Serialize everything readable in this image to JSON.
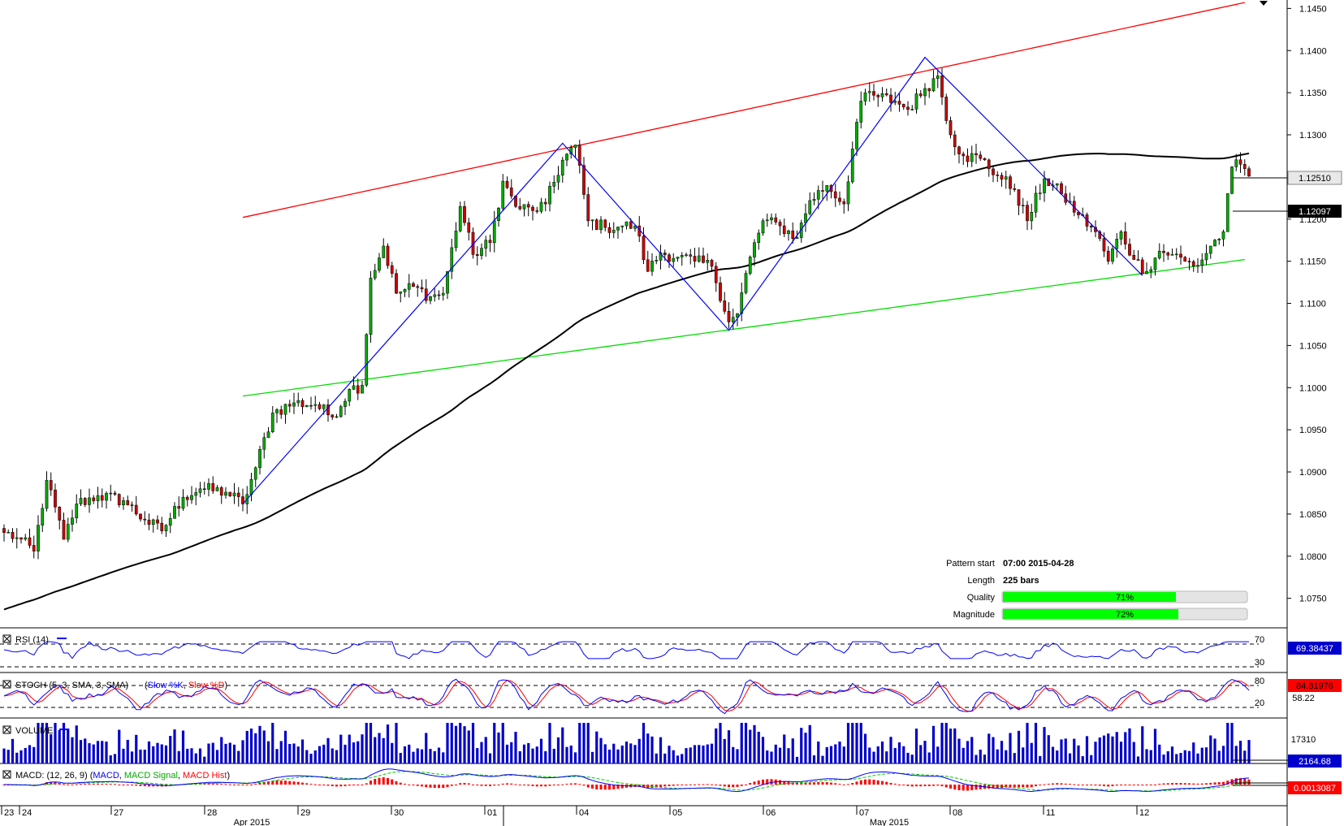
{
  "chart_data": {
    "type": "candlestick",
    "price_axis": {
      "ylim": [
        1.0715,
        1.146
      ],
      "ticks": [
        "1.1450",
        "1.1400",
        "1.1350",
        "1.1300",
        "1.1250",
        "1.1200",
        "1.1150",
        "1.1100",
        "1.1050",
        "1.1000",
        "1.0950",
        "1.0900",
        "1.0850",
        "1.0800",
        "1.0750"
      ]
    },
    "x_axis": {
      "day_labels": [
        "23",
        "24",
        "27",
        "28",
        "29",
        "30",
        "01",
        "04",
        "05",
        "06",
        "07",
        "08",
        "11",
        "12"
      ],
      "month_labels": [
        "Apr 2015",
        "May 2015"
      ]
    },
    "last_price_tag": "1.12510",
    "sma_tag": "1.12097",
    "anchors": [
      [
        0,
        1.0828
      ],
      [
        3,
        1.0822
      ],
      [
        7,
        1.0806
      ],
      [
        10,
        1.089
      ],
      [
        14,
        1.082
      ],
      [
        17,
        1.0862
      ],
      [
        22,
        1.0872
      ],
      [
        28,
        1.0866
      ],
      [
        33,
        1.0843
      ],
      [
        37,
        1.083
      ],
      [
        42,
        1.087
      ],
      [
        46,
        1.088
      ],
      [
        52,
        1.0876
      ],
      [
        56,
        1.0862
      ],
      [
        59,
        1.0905
      ],
      [
        63,
        1.097
      ],
      [
        68,
        1.0982
      ],
      [
        73,
        1.098
      ],
      [
        77,
        1.0965
      ],
      [
        81,
        1.0998
      ],
      [
        84,
        1.1003
      ],
      [
        86,
        1.113
      ],
      [
        89,
        1.1168
      ],
      [
        92,
        1.1112
      ],
      [
        96,
        1.112
      ],
      [
        100,
        1.1108
      ],
      [
        103,
        1.1112
      ],
      [
        107,
        1.1215
      ],
      [
        110,
        1.1158
      ],
      [
        114,
        1.1172
      ],
      [
        117,
        1.1245
      ],
      [
        120,
        1.1215
      ],
      [
        124,
        1.121
      ],
      [
        127,
        1.1218
      ],
      [
        131,
        1.127
      ],
      [
        134,
        1.1288
      ],
      [
        137,
        1.1198
      ],
      [
        141,
        1.119
      ],
      [
        145,
        1.1192
      ],
      [
        148,
        1.1192
      ],
      [
        151,
        1.1138
      ],
      [
        154,
        1.116
      ],
      [
        158,
        1.1155
      ],
      [
        162,
        1.115
      ],
      [
        166,
        1.1144
      ],
      [
        170,
        1.1078
      ],
      [
        172,
        1.1088
      ],
      [
        175,
        1.1155
      ],
      [
        178,
        1.1198
      ],
      [
        182,
        1.1192
      ],
      [
        186,
        1.1178
      ],
      [
        189,
        1.1222
      ],
      [
        193,
        1.124
      ],
      [
        197,
        1.1218
      ],
      [
        200,
        1.1315
      ],
      [
        202,
        1.135
      ],
      [
        205,
        1.1345
      ],
      [
        209,
        1.134
      ],
      [
        212,
        1.133
      ],
      [
        216,
        1.1355
      ],
      [
        219,
        1.137
      ],
      [
        222,
        1.13
      ],
      [
        225,
        1.1275
      ],
      [
        229,
        1.1272
      ],
      [
        233,
        1.1252
      ],
      [
        237,
        1.1235
      ],
      [
        240,
        1.1198
      ],
      [
        244,
        1.1248
      ],
      [
        248,
        1.123
      ],
      [
        252,
        1.1205
      ],
      [
        256,
        1.1185
      ],
      [
        259,
        1.115
      ],
      [
        262,
        1.1185
      ],
      [
        265,
        1.1152
      ],
      [
        268,
        1.1138
      ],
      [
        271,
        1.1162
      ],
      [
        274,
        1.1158
      ],
      [
        277,
        1.115
      ],
      [
        280,
        1.1145
      ],
      [
        283,
        1.1168
      ],
      [
        286,
        1.1185
      ],
      [
        288,
        1.1262
      ],
      [
        290,
        1.1265
      ],
      [
        292,
        1.1251
      ]
    ],
    "overlay_lines": [
      {
        "name": "resistance",
        "color": "#ff0000",
        "from": [
          56,
          1.1202
        ],
        "to": [
          291,
          1.1457
        ]
      },
      {
        "name": "support",
        "color": "#00dd00",
        "from": [
          56,
          1.099
        ],
        "to": [
          291,
          1.1152
        ]
      }
    ],
    "zigzag": [
      [
        56,
        1.0862
      ],
      [
        131,
        1.129
      ],
      [
        170,
        1.1068
      ],
      [
        216,
        1.1392
      ],
      [
        267,
        1.1133
      ]
    ],
    "pattern_info": {
      "rows": [
        {
          "label": "Pattern start",
          "value": "07:00 2015-04-28"
        },
        {
          "label": "Length",
          "value": "225 bars"
        },
        {
          "label": "Quality",
          "value": "71%",
          "percent": 71
        },
        {
          "label": "Magnitude",
          "value": "72%",
          "percent": 72
        }
      ]
    },
    "indicators": {
      "rsi": {
        "title": "RSI (14)",
        "levels": [
          "70",
          "30"
        ],
        "value": "69.38437"
      },
      "stoch": {
        "title": "STOCH (5, 3, SMA, 3, SMA)",
        "series": [
          "Slow %K",
          "Slow %D"
        ],
        "levels": [
          "80",
          "20"
        ],
        "value": "84.81976",
        "value2": "58.22"
      },
      "volume": {
        "title": "VOLUME",
        "ref": "17310",
        "value": "2164.68"
      },
      "macd": {
        "title": "MACD: (12, 26, 9)",
        "series": [
          "MACD",
          "MACD Signal",
          "MACD Hist"
        ],
        "value": "0.0013087"
      }
    },
    "colors": {
      "up": "#00aa00",
      "down": "#cc0000",
      "sma": "#000000",
      "zigzag": "#0000ff",
      "volume": "#0000cc",
      "gauge": "#00ff00"
    }
  }
}
